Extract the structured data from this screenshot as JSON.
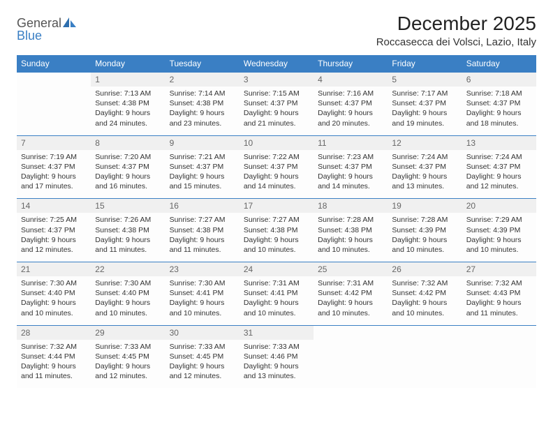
{
  "logo": {
    "word1": "General",
    "word2": "Blue"
  },
  "header": {
    "month_title": "December 2025",
    "location": "Roccasecca dei Volsci, Lazio, Italy"
  },
  "colors": {
    "header_bg": "#3a7fc4",
    "header_fg": "#ffffff",
    "row_border": "#3a7fc4",
    "daynum_bg": "#f0f0f0",
    "text": "#333333"
  },
  "day_names": [
    "Sunday",
    "Monday",
    "Tuesday",
    "Wednesday",
    "Thursday",
    "Friday",
    "Saturday"
  ],
  "weeks": [
    [
      null,
      {
        "n": "1",
        "sr": "Sunrise: 7:13 AM",
        "ss": "Sunset: 4:38 PM",
        "d1": "Daylight: 9 hours",
        "d2": "and 24 minutes."
      },
      {
        "n": "2",
        "sr": "Sunrise: 7:14 AM",
        "ss": "Sunset: 4:38 PM",
        "d1": "Daylight: 9 hours",
        "d2": "and 23 minutes."
      },
      {
        "n": "3",
        "sr": "Sunrise: 7:15 AM",
        "ss": "Sunset: 4:37 PM",
        "d1": "Daylight: 9 hours",
        "d2": "and 21 minutes."
      },
      {
        "n": "4",
        "sr": "Sunrise: 7:16 AM",
        "ss": "Sunset: 4:37 PM",
        "d1": "Daylight: 9 hours",
        "d2": "and 20 minutes."
      },
      {
        "n": "5",
        "sr": "Sunrise: 7:17 AM",
        "ss": "Sunset: 4:37 PM",
        "d1": "Daylight: 9 hours",
        "d2": "and 19 minutes."
      },
      {
        "n": "6",
        "sr": "Sunrise: 7:18 AM",
        "ss": "Sunset: 4:37 PM",
        "d1": "Daylight: 9 hours",
        "d2": "and 18 minutes."
      }
    ],
    [
      {
        "n": "7",
        "sr": "Sunrise: 7:19 AM",
        "ss": "Sunset: 4:37 PM",
        "d1": "Daylight: 9 hours",
        "d2": "and 17 minutes."
      },
      {
        "n": "8",
        "sr": "Sunrise: 7:20 AM",
        "ss": "Sunset: 4:37 PM",
        "d1": "Daylight: 9 hours",
        "d2": "and 16 minutes."
      },
      {
        "n": "9",
        "sr": "Sunrise: 7:21 AM",
        "ss": "Sunset: 4:37 PM",
        "d1": "Daylight: 9 hours",
        "d2": "and 15 minutes."
      },
      {
        "n": "10",
        "sr": "Sunrise: 7:22 AM",
        "ss": "Sunset: 4:37 PM",
        "d1": "Daylight: 9 hours",
        "d2": "and 14 minutes."
      },
      {
        "n": "11",
        "sr": "Sunrise: 7:23 AM",
        "ss": "Sunset: 4:37 PM",
        "d1": "Daylight: 9 hours",
        "d2": "and 14 minutes."
      },
      {
        "n": "12",
        "sr": "Sunrise: 7:24 AM",
        "ss": "Sunset: 4:37 PM",
        "d1": "Daylight: 9 hours",
        "d2": "and 13 minutes."
      },
      {
        "n": "13",
        "sr": "Sunrise: 7:24 AM",
        "ss": "Sunset: 4:37 PM",
        "d1": "Daylight: 9 hours",
        "d2": "and 12 minutes."
      }
    ],
    [
      {
        "n": "14",
        "sr": "Sunrise: 7:25 AM",
        "ss": "Sunset: 4:37 PM",
        "d1": "Daylight: 9 hours",
        "d2": "and 12 minutes."
      },
      {
        "n": "15",
        "sr": "Sunrise: 7:26 AM",
        "ss": "Sunset: 4:38 PM",
        "d1": "Daylight: 9 hours",
        "d2": "and 11 minutes."
      },
      {
        "n": "16",
        "sr": "Sunrise: 7:27 AM",
        "ss": "Sunset: 4:38 PM",
        "d1": "Daylight: 9 hours",
        "d2": "and 11 minutes."
      },
      {
        "n": "17",
        "sr": "Sunrise: 7:27 AM",
        "ss": "Sunset: 4:38 PM",
        "d1": "Daylight: 9 hours",
        "d2": "and 10 minutes."
      },
      {
        "n": "18",
        "sr": "Sunrise: 7:28 AM",
        "ss": "Sunset: 4:38 PM",
        "d1": "Daylight: 9 hours",
        "d2": "and 10 minutes."
      },
      {
        "n": "19",
        "sr": "Sunrise: 7:28 AM",
        "ss": "Sunset: 4:39 PM",
        "d1": "Daylight: 9 hours",
        "d2": "and 10 minutes."
      },
      {
        "n": "20",
        "sr": "Sunrise: 7:29 AM",
        "ss": "Sunset: 4:39 PM",
        "d1": "Daylight: 9 hours",
        "d2": "and 10 minutes."
      }
    ],
    [
      {
        "n": "21",
        "sr": "Sunrise: 7:30 AM",
        "ss": "Sunset: 4:40 PM",
        "d1": "Daylight: 9 hours",
        "d2": "and 10 minutes."
      },
      {
        "n": "22",
        "sr": "Sunrise: 7:30 AM",
        "ss": "Sunset: 4:40 PM",
        "d1": "Daylight: 9 hours",
        "d2": "and 10 minutes."
      },
      {
        "n": "23",
        "sr": "Sunrise: 7:30 AM",
        "ss": "Sunset: 4:41 PM",
        "d1": "Daylight: 9 hours",
        "d2": "and 10 minutes."
      },
      {
        "n": "24",
        "sr": "Sunrise: 7:31 AM",
        "ss": "Sunset: 4:41 PM",
        "d1": "Daylight: 9 hours",
        "d2": "and 10 minutes."
      },
      {
        "n": "25",
        "sr": "Sunrise: 7:31 AM",
        "ss": "Sunset: 4:42 PM",
        "d1": "Daylight: 9 hours",
        "d2": "and 10 minutes."
      },
      {
        "n": "26",
        "sr": "Sunrise: 7:32 AM",
        "ss": "Sunset: 4:42 PM",
        "d1": "Daylight: 9 hours",
        "d2": "and 10 minutes."
      },
      {
        "n": "27",
        "sr": "Sunrise: 7:32 AM",
        "ss": "Sunset: 4:43 PM",
        "d1": "Daylight: 9 hours",
        "d2": "and 11 minutes."
      }
    ],
    [
      {
        "n": "28",
        "sr": "Sunrise: 7:32 AM",
        "ss": "Sunset: 4:44 PM",
        "d1": "Daylight: 9 hours",
        "d2": "and 11 minutes."
      },
      {
        "n": "29",
        "sr": "Sunrise: 7:33 AM",
        "ss": "Sunset: 4:45 PM",
        "d1": "Daylight: 9 hours",
        "d2": "and 12 minutes."
      },
      {
        "n": "30",
        "sr": "Sunrise: 7:33 AM",
        "ss": "Sunset: 4:45 PM",
        "d1": "Daylight: 9 hours",
        "d2": "and 12 minutes."
      },
      {
        "n": "31",
        "sr": "Sunrise: 7:33 AM",
        "ss": "Sunset: 4:46 PM",
        "d1": "Daylight: 9 hours",
        "d2": "and 13 minutes."
      },
      null,
      null,
      null
    ]
  ]
}
